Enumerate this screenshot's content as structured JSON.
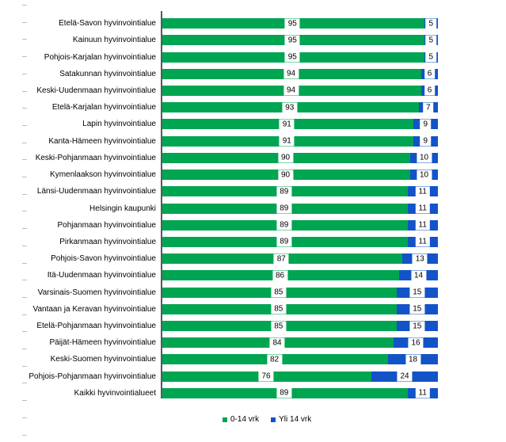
{
  "chart_data": {
    "type": "bar",
    "orientation": "horizontal",
    "stacked": true,
    "value_unit": "%",
    "xlim": [
      0,
      100
    ],
    "grid": false,
    "legend_position": "bottom",
    "title": "",
    "xlabel": "",
    "ylabel": "",
    "categories": [
      "Etelä-Savon hyvinvointialue",
      "Kainuun hyvinvointialue",
      "Pohjois-Karjalan hyvinvointialue",
      "Satakunnan hyvinvointialue",
      "Keski-Uudenmaan hyvinvointialue",
      "Etelä-Karjalan hyvinvointialue",
      "Lapin hyvinvointialue",
      "Kanta-Hämeen hyvinvointialue",
      "Keski-Pohjanmaan hyvinvointialue",
      "Kymenlaakson hyvinvointialue",
      "Länsi-Uudenmaan hyvinvointialue",
      "Helsingin kaupunki",
      "Pohjanmaan hyvinvointialue",
      "Pirkanmaan hyvinvointialue",
      "Pohjois-Savon hyvinvointialue",
      "Itä-Uudenmaan hyvinvointialue",
      "Varsinais-Suomen hyvinvointialue",
      "Vantaan ja Keravan hyvinvointialue",
      "Etelä-Pohjanmaan hyvinvointialue",
      "Päijät-Hämeen hyvinvointialue",
      "Keski-Suomen hyvinvointialue",
      "Pohjois-Pohjanmaan hyvinvointialue",
      "Kaikki hyvinvointialueet"
    ],
    "series": [
      {
        "name": "0-14 vrk",
        "color": "#00A551",
        "values": [
          95,
          95,
          95,
          94,
          94,
          93,
          91,
          91,
          90,
          90,
          89,
          89,
          89,
          89,
          87,
          86,
          85,
          85,
          85,
          84,
          82,
          76,
          89
        ]
      },
      {
        "name": "Yli 14 vrk",
        "color": "#1253C8",
        "values": [
          5,
          5,
          5,
          6,
          6,
          7,
          9,
          9,
          10,
          10,
          11,
          11,
          11,
          11,
          13,
          14,
          15,
          15,
          15,
          16,
          18,
          24,
          11
        ]
      }
    ]
  },
  "legend": {
    "items": [
      {
        "label": "0-14 vrk",
        "color": "#00A551"
      },
      {
        "label": "Yli 14 vrk",
        "color": "#1253C8"
      }
    ]
  },
  "colors": {
    "axis_line": "#595959",
    "edge_tick": "#bdbdbd",
    "label_text": "#000000",
    "background": "#ffffff"
  }
}
